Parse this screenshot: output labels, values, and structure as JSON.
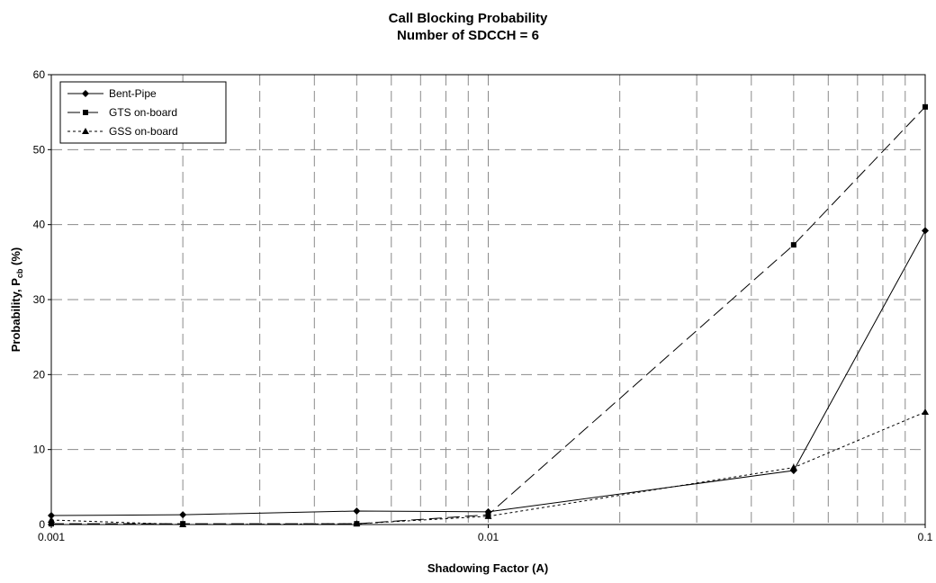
{
  "chart_data": {
    "type": "line",
    "title": "Call Blocking Probability",
    "subtitle": "Number of SDCCH = 6",
    "xlabel": "Shadowing Factor (A)",
    "ylabel_main": "Probability, P",
    "ylabel_sub": "cb",
    "ylabel_tail": " (%)",
    "x_scale": "log",
    "xlim": [
      0.001,
      0.1
    ],
    "ylim": [
      0,
      60
    ],
    "x_ticks": [
      0.001,
      0.01,
      0.1
    ],
    "x_tick_labels": [
      "0.001",
      "0.01",
      "0.1"
    ],
    "y_ticks": [
      0,
      10,
      20,
      30,
      40,
      50,
      60
    ],
    "y_tick_labels": [
      "0",
      "10",
      "20",
      "30",
      "40",
      "50",
      "60"
    ],
    "grid": true,
    "legend_position": "top-left",
    "series": [
      {
        "name": "Bent-Pipe",
        "marker": "diamond",
        "dash": "solid",
        "x": [
          0.001,
          0.002,
          0.005,
          0.01,
          0.05,
          0.1
        ],
        "y": [
          1.2,
          1.3,
          1.8,
          1.7,
          7.2,
          39.2
        ]
      },
      {
        "name": "GTS on-board",
        "marker": "square",
        "dash": "dashed",
        "x": [
          0.001,
          0.002,
          0.005,
          0.01,
          0.05,
          0.1
        ],
        "y": [
          0.1,
          0.1,
          0.1,
          1.3,
          37.3,
          55.7
        ]
      },
      {
        "name": "GSS on-board",
        "marker": "triangle",
        "dash": "dotted",
        "x": [
          0.001,
          0.002,
          0.005,
          0.01,
          0.05,
          0.1
        ],
        "y": [
          0.6,
          0.0,
          0.1,
          1.1,
          7.6,
          15.0
        ]
      }
    ]
  }
}
